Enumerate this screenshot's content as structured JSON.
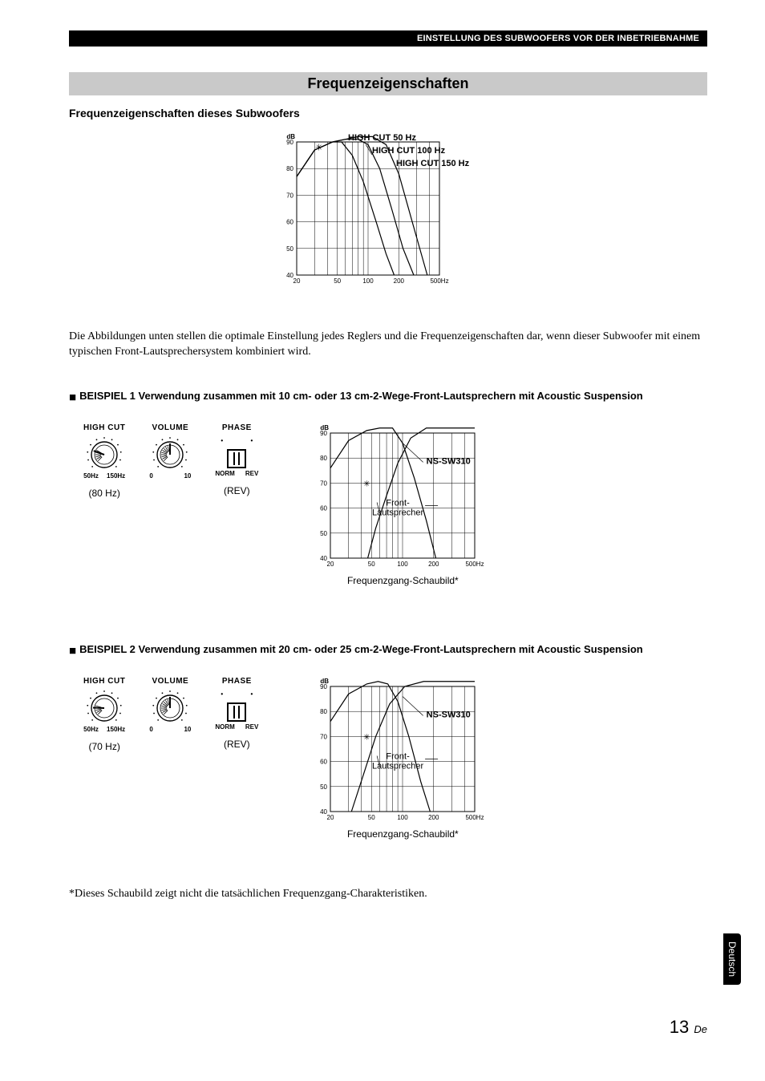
{
  "header_bar": "EINSTELLUNG DES SUBWOOFERS VOR DER INBETRIEBNAHME",
  "section_title": "Frequenzeigenschaften",
  "subtitle": "Frequenzeigenschaften dieses Subwoofers",
  "body_text": "Die Abbildungen unten stellen die optimale Einstellung jedes Reglers und die Frequenzeigenschaften dar, wenn dieser Subwoofer mit einem typischen Front-Lautsprechersystem kombiniert wird.",
  "example1_title": "BEISPIEL 1 Verwendung zusammen mit 10 cm- oder 13 cm-2-Wege-Front-Lautsprechern mit Acoustic Suspension",
  "example2_title": "BEISPIEL 2 Verwendung zusammen mit 20 cm- oder 25 cm-2-Wege-Front-Lautsprechern mit Acoustic Suspension",
  "controls": {
    "highcut": "HIGH CUT",
    "volume": "VOLUME",
    "phase": "PHASE",
    "hc_min": "50Hz",
    "hc_max": "150Hz",
    "vol_min": "0",
    "vol_max": "10",
    "ph_norm": "NORM",
    "ph_rev": "REV"
  },
  "ex1": {
    "hc": "(80 Hz)",
    "ph": "(REV)"
  },
  "ex2": {
    "hc": "(70 Hz)",
    "ph": "(REV)"
  },
  "chart_top": {
    "y_label": "dB",
    "y_ticks_db": [
      40,
      50,
      60,
      70,
      80,
      90
    ],
    "x_ticks_hz": [
      "20",
      "50",
      "100",
      "200",
      "500Hz"
    ],
    "annot1": "HIGH CUT 50 Hz",
    "annot2": "HIGH CUT 100 Hz",
    "annot3": "HIGH CUT 150 Hz",
    "colors": {
      "line": "#000000",
      "grid": "#000000",
      "bg": "#ffffff"
    },
    "curves": {
      "cut50": [
        [
          20,
          77
        ],
        [
          30,
          87
        ],
        [
          45,
          90
        ],
        [
          55,
          90
        ],
        [
          70,
          85
        ],
        [
          90,
          75
        ],
        [
          120,
          60
        ],
        [
          150,
          48
        ],
        [
          180,
          40
        ]
      ],
      "cut100": [
        [
          20,
          77
        ],
        [
          30,
          87
        ],
        [
          45,
          90
        ],
        [
          60,
          91
        ],
        [
          80,
          91
        ],
        [
          100,
          89
        ],
        [
          130,
          80
        ],
        [
          170,
          65
        ],
        [
          220,
          50
        ],
        [
          280,
          40
        ]
      ],
      "cut150": [
        [
          20,
          77
        ],
        [
          30,
          87
        ],
        [
          45,
          90
        ],
        [
          60,
          91
        ],
        [
          80,
          92
        ],
        [
          110,
          92
        ],
        [
          150,
          89
        ],
        [
          200,
          78
        ],
        [
          280,
          58
        ],
        [
          380,
          40
        ]
      ]
    }
  },
  "chart_ex": {
    "y_label": "dB",
    "y_ticks_db": [
      40,
      50,
      60,
      70,
      80,
      90
    ],
    "x_ticks_hz": [
      "20",
      "50",
      "100",
      "200",
      "500Hz"
    ],
    "model": "NS-SW310",
    "front": "Front-\nLautsprecher",
    "caption": "Frequenzgang-Schaubild*",
    "colors": {
      "line": "#000000",
      "grid": "#000000",
      "bg": "#ffffff"
    },
    "ex1_curves": {
      "sub": [
        [
          20,
          76
        ],
        [
          30,
          87
        ],
        [
          45,
          91
        ],
        [
          60,
          92
        ],
        [
          80,
          92
        ],
        [
          100,
          86
        ],
        [
          130,
          72
        ],
        [
          170,
          55
        ],
        [
          210,
          40
        ]
      ],
      "front": [
        [
          46,
          40
        ],
        [
          55,
          52
        ],
        [
          70,
          65
        ],
        [
          90,
          78
        ],
        [
          120,
          88
        ],
        [
          170,
          92
        ],
        [
          300,
          92
        ],
        [
          500,
          92
        ]
      ]
    },
    "ex2_curves": {
      "sub": [
        [
          20,
          76
        ],
        [
          30,
          87
        ],
        [
          45,
          91
        ],
        [
          58,
          92
        ],
        [
          72,
          91
        ],
        [
          90,
          84
        ],
        [
          115,
          70
        ],
        [
          150,
          52
        ],
        [
          185,
          40
        ]
      ],
      "front": [
        [
          32,
          40
        ],
        [
          42,
          55
        ],
        [
          55,
          70
        ],
        [
          75,
          83
        ],
        [
          105,
          90
        ],
        [
          160,
          92
        ],
        [
          300,
          92
        ],
        [
          500,
          92
        ]
      ]
    }
  },
  "footnote": "*Dieses Schaubild zeigt nicht die tatsächlichen Frequenzgang-Charakteristiken.",
  "side_tab": "Deutsch",
  "page": "13",
  "page_suffix": "De"
}
